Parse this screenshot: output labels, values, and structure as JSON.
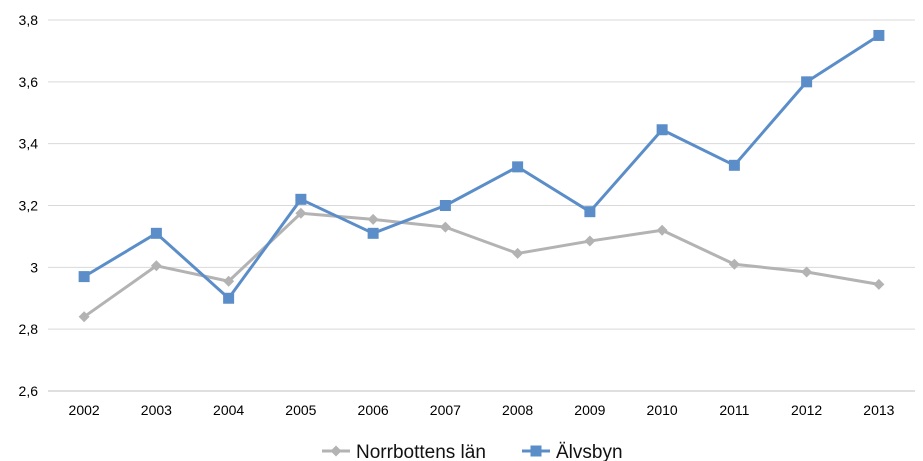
{
  "chart_data": {
    "type": "line",
    "title": "",
    "xlabel": "",
    "ylabel": "",
    "categories": [
      "2002",
      "2003",
      "2004",
      "2005",
      "2006",
      "2007",
      "2008",
      "2009",
      "2010",
      "2011",
      "2012",
      "2013"
    ],
    "ylim": [
      2.6,
      3.8
    ],
    "yticks": [
      2.6,
      2.8,
      3.0,
      3.2,
      3.4,
      3.6,
      3.8
    ],
    "ytick_labels": [
      "2,6",
      "2,8",
      "3",
      "3,2",
      "3,4",
      "3,6",
      "3,8"
    ],
    "grid": true,
    "legend_position": "bottom",
    "series": [
      {
        "name": "Norrbottens län",
        "color": "#b3b3b3",
        "marker": "diamond",
        "values": [
          2.84,
          3.005,
          2.955,
          3.175,
          3.155,
          3.13,
          3.045,
          3.085,
          3.12,
          3.01,
          2.985,
          2.945
        ]
      },
      {
        "name": "Älvsbyn",
        "color": "#5b8ec9",
        "marker": "square",
        "values": [
          2.97,
          3.11,
          2.9,
          3.22,
          3.11,
          3.2,
          3.325,
          3.18,
          3.445,
          3.33,
          3.6,
          3.75
        ]
      }
    ]
  }
}
